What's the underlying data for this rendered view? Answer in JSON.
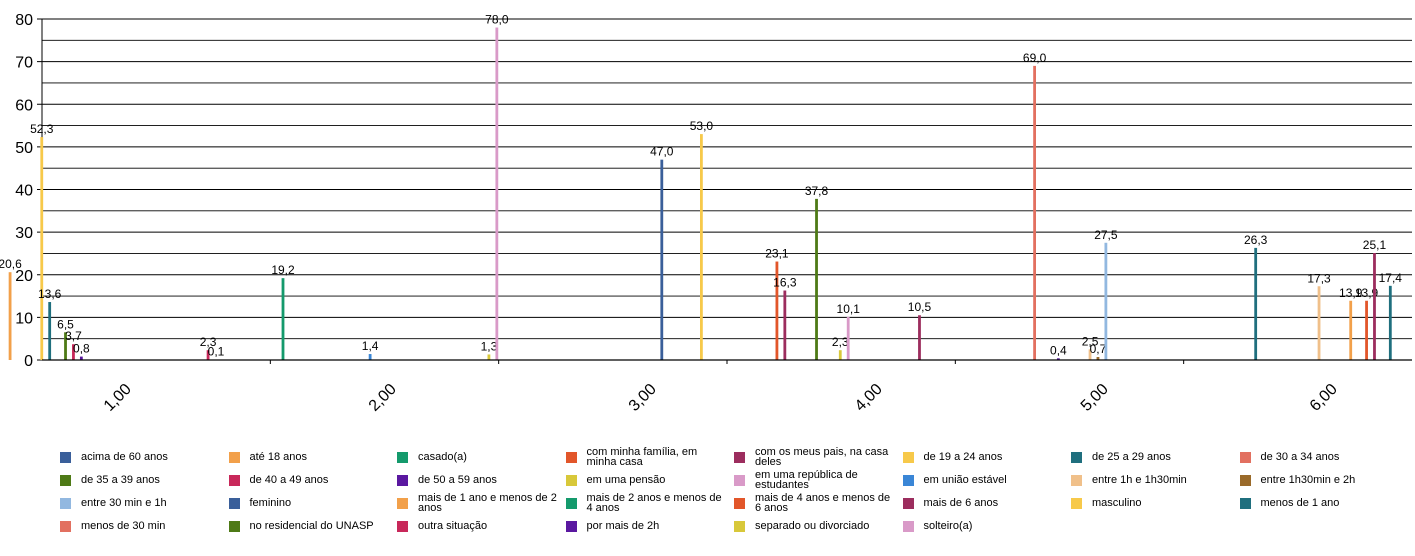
{
  "chart_data": {
    "type": "bar",
    "title": "",
    "xlabel": "",
    "ylabel": "",
    "ylim": [
      0,
      80
    ],
    "yticks": [
      0,
      10,
      20,
      30,
      40,
      50,
      60,
      70,
      80
    ],
    "grid": true,
    "legend_position": "bottom",
    "categories": [
      "1,00",
      "2,00",
      "3,00",
      "4,00",
      "5,00",
      "6,00"
    ],
    "series": [
      {
        "name": "acima de 60 anos",
        "color": "#3a5f9a",
        "values": [
          null,
          null,
          null,
          null,
          null,
          null
        ]
      },
      {
        "name": "até 18 anos",
        "color": "#f2a04a",
        "values": [
          20.6,
          null,
          null,
          null,
          null,
          null
        ]
      },
      {
        "name": "casado(a)",
        "color": "#149a6c",
        "values": [
          null,
          19.2,
          null,
          null,
          null,
          null
        ]
      },
      {
        "name": "com minha família, em minha casa",
        "color": "#e2562a",
        "values": [
          null,
          null,
          null,
          23.1,
          null,
          null
        ]
      },
      {
        "name": "com os meus pais, na casa deles",
        "color": "#9c2d5e",
        "values": [
          null,
          null,
          null,
          16.3,
          null,
          null
        ]
      },
      {
        "name": "de 19 a 24 anos",
        "color": "#f7c94a",
        "values": [
          52.3,
          null,
          null,
          null,
          null,
          null
        ]
      },
      {
        "name": "de 25 a 29 anos",
        "color": "#1f6f7e",
        "values": [
          13.6,
          null,
          null,
          null,
          null,
          26.3
        ]
      },
      {
        "name": "de 30 a 34 anos",
        "color": "#e27060",
        "values": [
          null,
          null,
          null,
          null,
          69.0,
          null
        ]
      },
      {
        "name": "de 35 a 39 anos",
        "color": "#4e7a16",
        "values": [
          6.5,
          null,
          null,
          37.8,
          null,
          null
        ]
      },
      {
        "name": "de 40 a 49 anos",
        "color": "#c8285a",
        "values": [
          3.7,
          null,
          null,
          null,
          null,
          null
        ]
      },
      {
        "name": "de 50 a 59 anos",
        "color": "#5a18a0",
        "values": [
          0.8,
          null,
          null,
          null,
          0.4,
          null
        ]
      },
      {
        "name": "em uma pensão",
        "color": "#d8c83a",
        "values": [
          null,
          null,
          null,
          2.3,
          null,
          null
        ]
      },
      {
        "name": "em uma república de estudantes",
        "color": "#d99ac8",
        "values": [
          null,
          null,
          null,
          10.1,
          null,
          null
        ]
      },
      {
        "name": "em união estável",
        "color": "#3a86d6",
        "values": [
          null,
          1.4,
          null,
          null,
          null,
          null
        ]
      },
      {
        "name": "entre 1h e 1h30min",
        "color": "#f0c08a",
        "values": [
          null,
          null,
          null,
          null,
          2.5,
          17.3
        ]
      },
      {
        "name": "entre 1h30min e 2h",
        "color": "#9a6a2a",
        "values": [
          null,
          null,
          null,
          null,
          0.7,
          null
        ]
      },
      {
        "name": "entre 30 min e 1h",
        "color": "#92b8e0",
        "values": [
          null,
          null,
          null,
          null,
          27.5,
          null
        ]
      },
      {
        "name": "feminino",
        "color": "#3a5f9a",
        "values": [
          null,
          null,
          47.0,
          null,
          null,
          null
        ]
      },
      {
        "name": "mais de 1 ano e menos de 2 anos",
        "color": "#f2a04a",
        "values": [
          null,
          null,
          null,
          null,
          null,
          13.9
        ]
      },
      {
        "name": "mais de 2 anos e menos de 4 anos",
        "color": "#149a6c",
        "values": [
          null,
          null,
          null,
          null,
          null,
          null
        ]
      },
      {
        "name": "mais de 4 anos e menos de 6 anos",
        "color": "#e2562a",
        "values": [
          null,
          null,
          null,
          null,
          null,
          13.9
        ]
      },
      {
        "name": "mais de 6 anos",
        "color": "#9c2d5e",
        "values": [
          null,
          null,
          null,
          10.5,
          null,
          25.1
        ]
      },
      {
        "name": "masculino",
        "color": "#f7c94a",
        "values": [
          null,
          null,
          53.0,
          null,
          null,
          null
        ]
      },
      {
        "name": "menos de 1 ano",
        "color": "#1f6f7e",
        "values": [
          null,
          null,
          null,
          null,
          null,
          17.4
        ]
      },
      {
        "name": "menos de 30 min",
        "color": "#e27060",
        "values": [
          null,
          null,
          null,
          null,
          null,
          null
        ]
      },
      {
        "name": "no residencial do UNASP",
        "color": "#4e7a16",
        "values": [
          null,
          null,
          null,
          null,
          null,
          null
        ]
      },
      {
        "name": "outra situação",
        "color": "#c8285a",
        "values": [
          2.3,
          null,
          null,
          null,
          null,
          null
        ]
      },
      {
        "name": "por mais de 2h",
        "color": "#5a18a0",
        "values": [
          0.1,
          null,
          null,
          null,
          null,
          null
        ]
      },
      {
        "name": "separado ou divorciado",
        "color": "#d8c83a",
        "values": [
          null,
          1.3,
          null,
          null,
          null,
          null
        ]
      },
      {
        "name": "solteiro(a)",
        "color": "#d99ac8",
        "values": [
          null,
          78.0,
          null,
          null,
          null,
          null
        ]
      }
    ]
  }
}
